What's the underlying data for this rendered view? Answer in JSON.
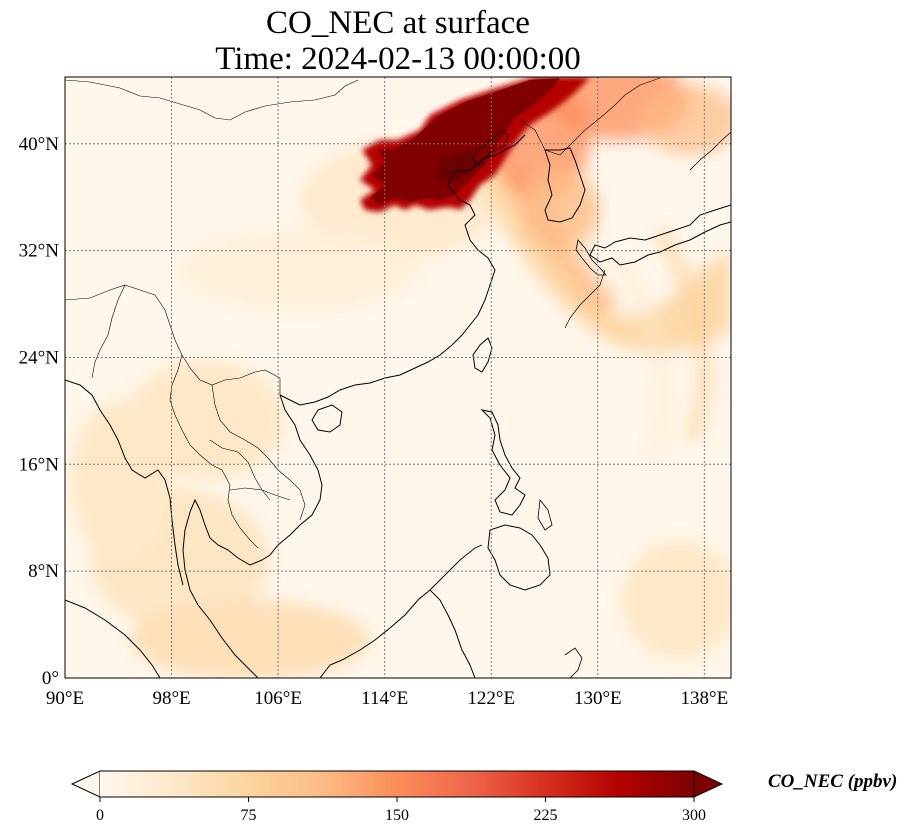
{
  "figure": {
    "title_line_1": "CO_NEC at surface",
    "title_line_2": "Time: 2024-02-13 00:00:00"
  },
  "map": {
    "lon_range": [
      90,
      140
    ],
    "lat_range": [
      0,
      45
    ],
    "lon_ticks": [
      {
        "value": 90,
        "label": "90°E"
      },
      {
        "value": 98,
        "label": "98°E"
      },
      {
        "value": 106,
        "label": "106°E"
      },
      {
        "value": 114,
        "label": "114°E"
      },
      {
        "value": 122,
        "label": "122°E"
      },
      {
        "value": 130,
        "label": "130°E"
      },
      {
        "value": 138,
        "label": "138°E"
      }
    ],
    "lat_ticks": [
      {
        "value": 0,
        "label": "0°"
      },
      {
        "value": 8,
        "label": "8°N"
      },
      {
        "value": 16,
        "label": "16°N"
      },
      {
        "value": 24,
        "label": "24°N"
      },
      {
        "value": 32,
        "label": "32°N"
      },
      {
        "value": 40,
        "label": "40°N"
      }
    ],
    "gridlines": true,
    "colormap": "OrRd",
    "high_concentration_region": "North China Plain plume extending to northeast, dark red",
    "colors": {
      "background_low": "#fff7ec",
      "coastline": "#000000",
      "gridline": "#808080"
    }
  },
  "colorbar": {
    "title": "CO_NEC (ppbv)",
    "min": 0,
    "max": 300,
    "extend": "both",
    "ticks": [
      {
        "value": 0,
        "label": "0"
      },
      {
        "value": 75,
        "label": "75"
      },
      {
        "value": 150,
        "label": "150"
      },
      {
        "value": 225,
        "label": "225"
      },
      {
        "value": 300,
        "label": "300"
      }
    ],
    "colors": [
      "#fff7ec",
      "#fee8c8",
      "#fdd49e",
      "#fdbb84",
      "#fc8d59",
      "#ef6548",
      "#d7301f",
      "#b30000",
      "#7f0000"
    ]
  }
}
